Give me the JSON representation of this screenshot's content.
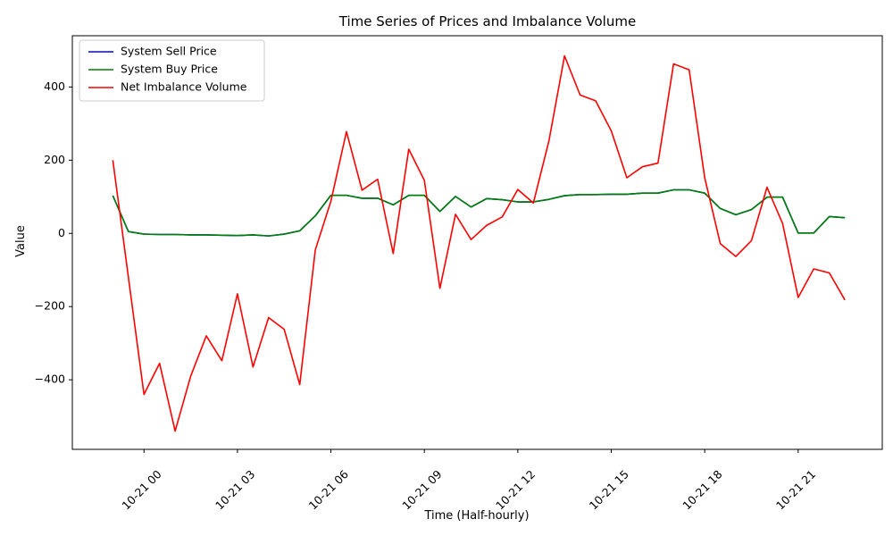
{
  "chart_data": {
    "type": "line",
    "title": "Time Series of Prices and Imbalance Volume",
    "xlabel": "Time (Half-hourly)",
    "ylabel": "Value",
    "x_unit": "datetime",
    "x": [
      "10-21 -01:00",
      "10-21 -00:30",
      "10-21 00:00",
      "10-21 00:30",
      "10-21 01:00",
      "10-21 01:30",
      "10-21 02:00",
      "10-21 02:30",
      "10-21 03:00",
      "10-21 03:30",
      "10-21 04:00",
      "10-21 04:30",
      "10-21 05:00",
      "10-21 05:30",
      "10-21 06:00",
      "10-21 06:30",
      "10-21 07:00",
      "10-21 07:30",
      "10-21 08:00",
      "10-21 08:30",
      "10-21 09:00",
      "10-21 09:30",
      "10-21 10:00",
      "10-21 10:30",
      "10-21 11:00",
      "10-21 11:30",
      "10-21 12:00",
      "10-21 12:30",
      "10-21 13:00",
      "10-21 13:30",
      "10-21 14:00",
      "10-21 14:30",
      "10-21 15:00",
      "10-21 15:30",
      "10-21 16:00",
      "10-21 16:30",
      "10-21 17:00",
      "10-21 17:30",
      "10-21 18:00",
      "10-21 18:30",
      "10-21 19:00",
      "10-21 19:30",
      "10-21 20:00",
      "10-21 20:30",
      "10-21 21:00",
      "10-21 21:30",
      "10-21 22:00",
      "10-21 22:30"
    ],
    "x_hours": [
      -1,
      -0.5,
      0,
      0.5,
      1,
      1.5,
      2,
      2.5,
      3,
      3.5,
      4,
      4.5,
      5,
      5.5,
      6,
      6.5,
      7,
      7.5,
      8,
      8.5,
      9,
      9.5,
      10,
      10.5,
      11,
      11.5,
      12,
      12.5,
      13,
      13.5,
      14,
      14.5,
      15,
      15.5,
      16,
      16.5,
      17,
      17.5,
      18,
      18.5,
      19,
      19.5,
      20,
      20.5,
      21,
      21.5,
      22,
      22.5
    ],
    "xticks": [
      {
        "hour": 0,
        "label": "10-21 00"
      },
      {
        "hour": 3,
        "label": "10-21 03"
      },
      {
        "hour": 6,
        "label": "10-21 06"
      },
      {
        "hour": 9,
        "label": "10-21 09"
      },
      {
        "hour": 12,
        "label": "10-21 12"
      },
      {
        "hour": 15,
        "label": "10-21 15"
      },
      {
        "hour": 18,
        "label": "10-21 18"
      },
      {
        "hour": 21,
        "label": "10-21 21"
      }
    ],
    "xlim": [
      -2.3,
      23.7
    ],
    "ylim": [
      -590,
      540
    ],
    "yticks": [
      -400,
      -200,
      0,
      200,
      400
    ],
    "ytick_labels": [
      "−400",
      "−200",
      "0",
      "200",
      "400"
    ],
    "grid": false,
    "legend_position": "top-left",
    "series": [
      {
        "name": "System Sell Price",
        "color": "#0000ff",
        "values": [
          103,
          5,
          -2,
          -3,
          -3,
          -4,
          -4,
          -5,
          -6,
          -4,
          -7,
          -2,
          7,
          48,
          104,
          104,
          96,
          96,
          78,
          104,
          104,
          60,
          101,
          72,
          95,
          92,
          86,
          86,
          93,
          103,
          106,
          106,
          107,
          107,
          110,
          110,
          119,
          119,
          110,
          68,
          51,
          65,
          99,
          99,
          1,
          1,
          46,
          43
        ]
      },
      {
        "name": "System Buy Price",
        "color": "#008000",
        "values": [
          103,
          5,
          -2,
          -3,
          -3,
          -4,
          -4,
          -5,
          -6,
          -4,
          -7,
          -2,
          7,
          48,
          104,
          104,
          96,
          96,
          78,
          104,
          104,
          60,
          101,
          72,
          95,
          92,
          86,
          86,
          93,
          103,
          106,
          106,
          107,
          107,
          110,
          110,
          119,
          119,
          110,
          68,
          51,
          65,
          99,
          99,
          1,
          1,
          46,
          43
        ]
      },
      {
        "name": "Net Imbalance Volume",
        "color": "#ff0000",
        "values": [
          200,
          -120,
          -440,
          -355,
          -540,
          -390,
          -280,
          -348,
          -165,
          -365,
          -230,
          -262,
          -413,
          -45,
          88,
          278,
          118,
          148,
          -55,
          230,
          145,
          -150,
          52,
          -17,
          22,
          45,
          120,
          83,
          253,
          485,
          378,
          362,
          280,
          152,
          182,
          192,
          463,
          447,
          152,
          -28,
          -63,
          -20,
          126,
          27,
          -175,
          -97,
          -108,
          -182
        ]
      }
    ]
  }
}
